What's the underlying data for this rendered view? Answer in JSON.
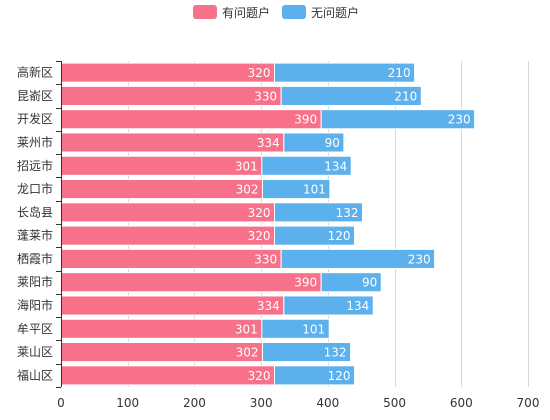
{
  "chart_data": {
    "type": "bar",
    "orientation": "horizontal",
    "stacked": true,
    "categories": [
      "高新区",
      "昆嵛区",
      "开发区",
      "莱州市",
      "招远市",
      "龙口市",
      "长岛县",
      "蓬莱市",
      "栖霞市",
      "莱阳市",
      "海阳市",
      "牟平区",
      "莱山区",
      "福山区"
    ],
    "series": [
      {
        "name": "有问题户",
        "color": "#f8718a",
        "values": [
          320,
          330,
          390,
          334,
          301,
          302,
          320,
          320,
          330,
          390,
          334,
          301,
          302,
          320
        ]
      },
      {
        "name": "无问题户",
        "color": "#5cb0ec",
        "values": [
          210,
          210,
          230,
          90,
          134,
          101,
          132,
          120,
          230,
          90,
          134,
          101,
          132,
          120
        ]
      }
    ],
    "xlim": [
      0,
      700
    ],
    "xticks": [
      0,
      100,
      200,
      300,
      400,
      500,
      600,
      700
    ],
    "grid": "vertical",
    "legend": "top-center"
  }
}
